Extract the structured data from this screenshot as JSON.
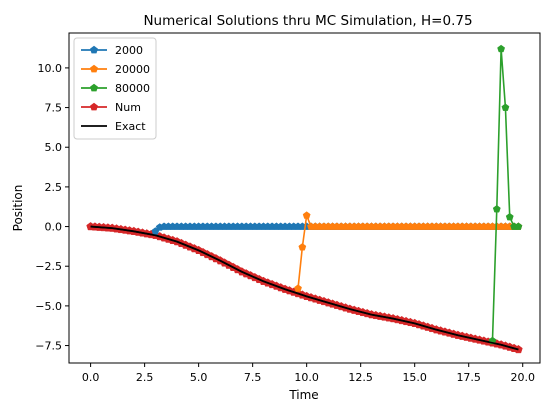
{
  "chart_data": {
    "type": "line",
    "title": "Numerical Solutions thru MC Simulation, H=0.75",
    "xlabel": "Time",
    "ylabel": "Position",
    "xlim": [
      -1.0,
      20.8
    ],
    "ylim": [
      -8.6,
      12.2
    ],
    "xticks": [
      0.0,
      2.5,
      5.0,
      7.5,
      10.0,
      12.5,
      15.0,
      17.5,
      20.0
    ],
    "xtick_labels": [
      "0.0",
      "2.5",
      "5.0",
      "7.5",
      "10.0",
      "12.5",
      "15.0",
      "17.5",
      "20.0"
    ],
    "yticks": [
      -7.5,
      -5.0,
      -2.5,
      0.0,
      2.5,
      5.0,
      7.5,
      10.0
    ],
    "ytick_labels": [
      "−7.5",
      "−5.0",
      "−2.5",
      "0.0",
      "2.5",
      "5.0",
      "7.5",
      "10.0"
    ],
    "grid": false,
    "legend_position": "top-left",
    "series": [
      {
        "name": "2000",
        "color": "#1f77b4",
        "marker": "pentagon",
        "x_start": 3.0,
        "x_end": 19.8,
        "x_step": 0.2,
        "values_note_free": true,
        "points": [
          [
            3.0,
            -0.3
          ],
          [
            3.2,
            -0.05
          ],
          [
            3.4,
            0.0
          ],
          [
            19.8,
            0.0
          ]
        ]
      },
      {
        "name": "20000",
        "color": "#ff7f0e",
        "marker": "pentagon",
        "points": [
          [
            9.6,
            -3.9
          ],
          [
            9.8,
            -1.3
          ],
          [
            10.0,
            0.7
          ],
          [
            10.2,
            0.0
          ],
          [
            19.8,
            0.0
          ]
        ]
      },
      {
        "name": "80000",
        "color": "#2ca02c",
        "marker": "pentagon",
        "points": [
          [
            18.6,
            -7.2
          ],
          [
            18.8,
            1.1
          ],
          [
            19.0,
            11.2
          ],
          [
            19.2,
            7.5
          ],
          [
            19.4,
            0.6
          ],
          [
            19.6,
            0.0
          ],
          [
            19.8,
            0.0
          ]
        ]
      },
      {
        "name": "Num",
        "color": "#d62728",
        "marker": "pentagon",
        "points": [
          [
            0.0,
            0.0
          ],
          [
            1.0,
            -0.1
          ],
          [
            2.0,
            -0.3
          ],
          [
            3.0,
            -0.55
          ],
          [
            4.0,
            -0.95
          ],
          [
            5.0,
            -1.5
          ],
          [
            6.0,
            -2.15
          ],
          [
            7.0,
            -2.85
          ],
          [
            8.0,
            -3.45
          ],
          [
            9.0,
            -3.95
          ],
          [
            10.0,
            -4.4
          ],
          [
            11.0,
            -4.8
          ],
          [
            12.0,
            -5.2
          ],
          [
            13.0,
            -5.55
          ],
          [
            14.0,
            -5.8
          ],
          [
            15.0,
            -6.1
          ],
          [
            16.0,
            -6.5
          ],
          [
            17.0,
            -6.85
          ],
          [
            18.0,
            -7.15
          ],
          [
            19.0,
            -7.45
          ],
          [
            19.8,
            -7.75
          ]
        ]
      },
      {
        "name": "Exact",
        "color": "#000000",
        "marker": "none",
        "points": [
          [
            0.0,
            0.0
          ],
          [
            1.0,
            -0.1
          ],
          [
            2.0,
            -0.3
          ],
          [
            3.0,
            -0.55
          ],
          [
            4.0,
            -0.95
          ],
          [
            5.0,
            -1.5
          ],
          [
            6.0,
            -2.15
          ],
          [
            7.0,
            -2.85
          ],
          [
            8.0,
            -3.45
          ],
          [
            9.0,
            -3.95
          ],
          [
            10.0,
            -4.4
          ],
          [
            11.0,
            -4.8
          ],
          [
            12.0,
            -5.2
          ],
          [
            13.0,
            -5.55
          ],
          [
            14.0,
            -5.8
          ],
          [
            15.0,
            -6.1
          ],
          [
            16.0,
            -6.5
          ],
          [
            17.0,
            -6.85
          ],
          [
            18.0,
            -7.15
          ],
          [
            19.0,
            -7.45
          ],
          [
            19.8,
            -7.75
          ]
        ]
      }
    ]
  }
}
